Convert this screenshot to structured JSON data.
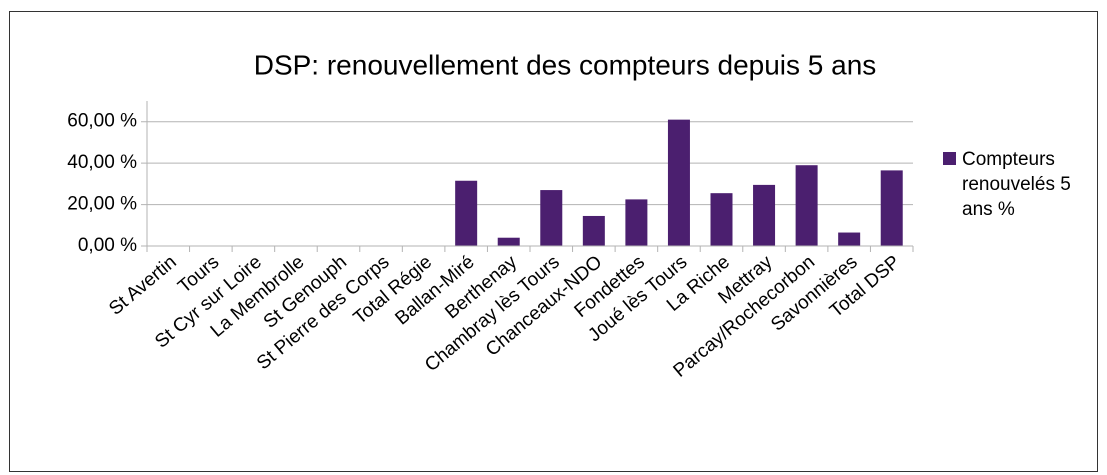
{
  "chart_data": {
    "type": "bar",
    "title": "DSP: renouvellement des compteurs depuis 5 ans",
    "categories": [
      "St Avertin",
      "Tours",
      "St Cyr sur Loire",
      "La Membrolle",
      "St Genouph",
      "St Pierre des Corps",
      "Total Régie",
      "Ballan-Miré",
      "Berthenay",
      "Chambray lès Tours",
      "Chanceaux-NDO",
      "Fondettes",
      "Joué lès Tours",
      "La Riche",
      "Mettray",
      "Parcay/Rochecorbon",
      "Savonnières",
      "Total DSP"
    ],
    "series": [
      {
        "name": "Compteurs renouvelés 5 ans %",
        "color": "#4b1f6f",
        "values": [
          0,
          0,
          0,
          0,
          0,
          0,
          0,
          31.5,
          4,
          27,
          14.5,
          22.5,
          61,
          25.5,
          29.5,
          39,
          6.5,
          36.5
        ]
      }
    ],
    "ylim": [
      0,
      70
    ],
    "yticks": [
      {
        "value": 0,
        "label": "0,00 %"
      },
      {
        "value": 20,
        "label": "20,00 %"
      },
      {
        "value": 40,
        "label": "40,00 %"
      },
      {
        "value": 60,
        "label": "60,00 %"
      }
    ],
    "grid": true,
    "legend": "right"
  }
}
